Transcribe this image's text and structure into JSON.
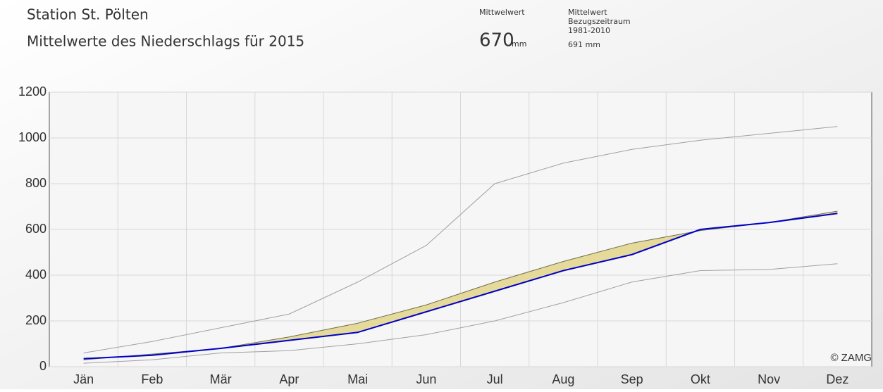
{
  "chart_data": {
    "type": "line",
    "title": "Station St. Pölten",
    "subtitle": "Mittelwerte des Niederschlags für 2015",
    "summary": {
      "label": "Mittwelwert",
      "value": 670,
      "unit": "mm",
      "reference_label": "Mittelwert",
      "reference_period_label": "Bezugszeitraum",
      "reference_period": "1981-2010",
      "reference_value": "691 mm"
    },
    "annotation": "© ZAMG",
    "categories": [
      "Jän",
      "Feb",
      "Mär",
      "Apr",
      "Mai",
      "Jun",
      "Jul",
      "Aug",
      "Sep",
      "Okt",
      "Nov",
      "Dez"
    ],
    "series": [
      {
        "color": "#0000c8",
        "values": [
          35,
          50,
          80,
          115,
          150,
          240,
          330,
          420,
          490,
          600,
          630,
          670
        ]
      },
      {
        "color": "#6e6e50",
        "values": [
          30,
          55,
          80,
          130,
          190,
          270,
          370,
          460,
          540,
          595,
          630,
          680
        ]
      },
      {
        "color": "#a0a0a0",
        "values": [
          60,
          110,
          170,
          230,
          370,
          530,
          800,
          890,
          950,
          990,
          1020,
          1050
        ]
      },
      {
        "color": "#a0a0a0",
        "values": [
          15,
          30,
          60,
          70,
          100,
          140,
          200,
          280,
          370,
          420,
          425,
          450
        ]
      }
    ],
    "fill_color": "#e6da9a",
    "ylim": [
      0,
      1200
    ],
    "yticks": [
      0,
      200,
      400,
      600,
      800,
      1000,
      1200
    ],
    "grid": true
  }
}
